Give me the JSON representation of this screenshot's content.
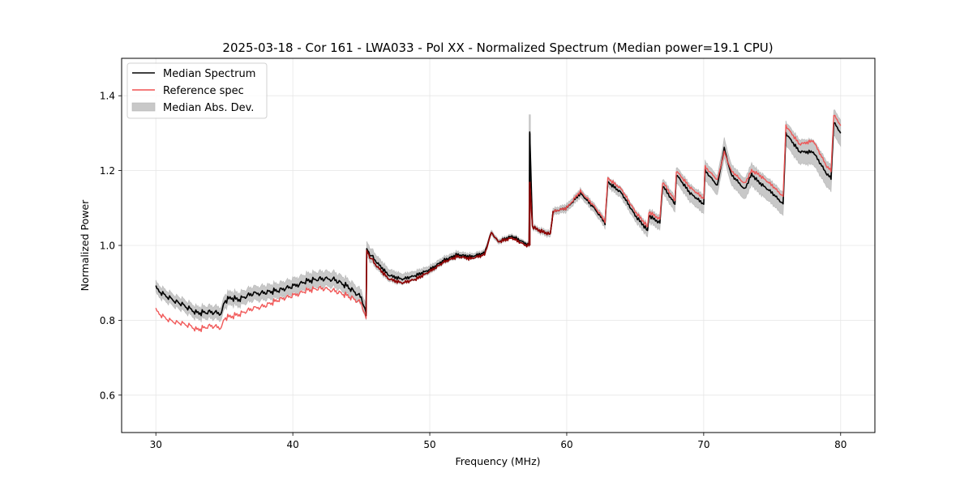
{
  "chart_data": {
    "type": "line",
    "title": "2025-03-18 - Cor 161 - LWA033 - Pol XX - Normalized Spectrum (Median power=19.1 CPU)",
    "xlabel": "Frequency (MHz)",
    "ylabel": "Normalized Power",
    "xlim": [
      27.5,
      82.5
    ],
    "ylim": [
      0.5,
      1.5
    ],
    "xticks": [
      30,
      40,
      50,
      60,
      70,
      80
    ],
    "xtick_labels": [
      "30",
      "40",
      "50",
      "60",
      "70",
      "80"
    ],
    "yticks": [
      0.6,
      0.8,
      1.0,
      1.2,
      1.4
    ],
    "ytick_labels": [
      "0.6",
      "0.8",
      "1.0",
      "1.2",
      "1.4"
    ],
    "grid": true,
    "legend": {
      "location": "upper-left",
      "entries": [
        {
          "label": "Median Spectrum",
          "kind": "line",
          "color": "#000000"
        },
        {
          "label": "Reference spec",
          "kind": "line",
          "color": "#f05050"
        },
        {
          "label": "Median Abs. Dev.",
          "kind": "patch",
          "color": "#c8c8c8"
        }
      ]
    },
    "series": [
      {
        "name": "Median Spectrum",
        "color": "#000000",
        "x": [
          30.0,
          30.5,
          31.0,
          31.5,
          32.0,
          32.5,
          33.0,
          34.0,
          34.8,
          35.0,
          35.5,
          36.0,
          37.0,
          38.0,
          39.0,
          40.0,
          41.0,
          42.0,
          43.0,
          44.0,
          45.0,
          45.35,
          45.4,
          46.0,
          47.0,
          48.0,
          49.0,
          50.0,
          51.0,
          52.0,
          53.0,
          54.0,
          54.5,
          55.0,
          56.0,
          57.0,
          57.25,
          57.3,
          57.5,
          58.0,
          58.8,
          59.0,
          60.0,
          61.0,
          62.0,
          62.8,
          63.0,
          64.0,
          65.0,
          65.9,
          66.0,
          66.8,
          67.0,
          67.9,
          68.0,
          69.0,
          70.0,
          70.1,
          71.0,
          71.5,
          72.0,
          73.0,
          73.5,
          74.0,
          75.0,
          75.8,
          76.0,
          77.0,
          78.0,
          79.0,
          79.3,
          79.5,
          80.0
        ],
        "values": [
          0.885,
          0.87,
          0.86,
          0.85,
          0.84,
          0.83,
          0.82,
          0.822,
          0.818,
          0.85,
          0.86,
          0.855,
          0.87,
          0.875,
          0.88,
          0.89,
          0.905,
          0.91,
          0.91,
          0.89,
          0.86,
          0.82,
          0.99,
          0.96,
          0.92,
          0.91,
          0.92,
          0.935,
          0.96,
          0.975,
          0.97,
          0.98,
          1.035,
          1.01,
          1.025,
          1.005,
          1.0,
          1.3,
          1.05,
          1.04,
          1.03,
          1.09,
          1.1,
          1.14,
          1.1,
          1.06,
          1.17,
          1.14,
          1.08,
          1.04,
          1.08,
          1.06,
          1.16,
          1.11,
          1.19,
          1.14,
          1.11,
          1.2,
          1.16,
          1.26,
          1.19,
          1.15,
          1.19,
          1.17,
          1.14,
          1.11,
          1.3,
          1.25,
          1.25,
          1.19,
          1.18,
          1.33,
          1.3
        ]
      },
      {
        "name": "Reference spec",
        "color": "#f05050",
        "x": [
          30.0,
          30.5,
          31.0,
          31.5,
          32.0,
          32.5,
          33.0,
          34.0,
          34.8,
          35.0,
          35.5,
          36.0,
          37.0,
          38.0,
          39.0,
          40.0,
          41.0,
          42.0,
          43.0,
          44.0,
          45.0,
          45.35,
          45.4,
          46.0,
          47.0,
          48.0,
          49.0,
          50.0,
          51.0,
          52.0,
          53.0,
          54.0,
          54.5,
          55.0,
          56.0,
          57.0,
          57.25,
          57.3,
          57.5,
          58.0,
          58.8,
          59.0,
          60.0,
          61.0,
          62.0,
          62.8,
          63.0,
          64.0,
          65.0,
          65.9,
          66.0,
          66.8,
          67.0,
          67.9,
          68.0,
          69.0,
          70.0,
          70.1,
          71.0,
          71.5,
          72.0,
          73.0,
          73.5,
          74.0,
          75.0,
          75.8,
          76.0,
          77.0,
          78.0,
          79.0,
          79.3,
          79.5,
          80.0
        ],
        "values": [
          0.825,
          0.81,
          0.8,
          0.795,
          0.79,
          0.785,
          0.775,
          0.785,
          0.78,
          0.805,
          0.81,
          0.815,
          0.83,
          0.84,
          0.855,
          0.865,
          0.88,
          0.885,
          0.88,
          0.865,
          0.845,
          0.805,
          0.985,
          0.95,
          0.91,
          0.9,
          0.91,
          0.93,
          0.955,
          0.97,
          0.965,
          0.975,
          1.035,
          1.01,
          1.02,
          1.0,
          1.0,
          1.17,
          1.05,
          1.04,
          1.03,
          1.09,
          1.1,
          1.145,
          1.105,
          1.065,
          1.18,
          1.15,
          1.09,
          1.05,
          1.09,
          1.07,
          1.17,
          1.12,
          1.2,
          1.155,
          1.125,
          1.21,
          1.175,
          1.25,
          1.2,
          1.165,
          1.2,
          1.19,
          1.16,
          1.13,
          1.32,
          1.27,
          1.28,
          1.21,
          1.2,
          1.35,
          1.32
        ]
      },
      {
        "name": "Median Abs. Dev.",
        "kind": "band",
        "color": "#c8c8c8",
        "x": [
          30.0,
          40.0,
          45.0,
          50.0,
          55.0,
          57.0,
          60.0,
          65.0,
          70.0,
          75.0,
          80.0
        ],
        "halfwidth": [
          0.015,
          0.02,
          0.02,
          0.01,
          0.006,
          0.005,
          0.01,
          0.015,
          0.025,
          0.03,
          0.035
        ],
        "spike": {
          "x": 57.3,
          "upper": 1.35
        }
      }
    ]
  }
}
